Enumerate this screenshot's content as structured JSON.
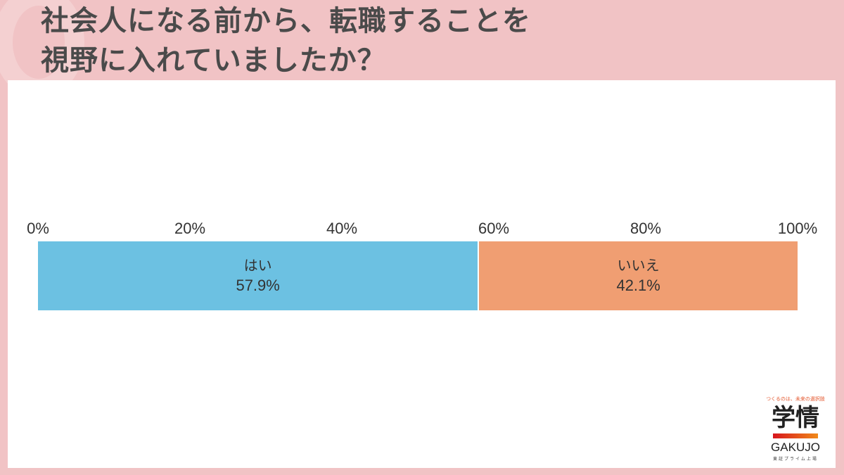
{
  "title": {
    "line1": "社会人になる前から、転職することを",
    "line2": "視野に入れていましたか？"
  },
  "chart_data": {
    "type": "bar",
    "orientation": "horizontal-stacked-100",
    "title": "社会人になる前から、転職することを視野に入れていましたか？",
    "xlabel": "",
    "ylabel": "",
    "xlim": [
      0,
      100
    ],
    "x_ticks": [
      "0%",
      "20%",
      "40%",
      "60%",
      "80%",
      "100%"
    ],
    "grid": false,
    "legend": "none (labels inside segments)",
    "series": [
      {
        "name": "はい",
        "value": 57.9,
        "label": "57.9%",
        "color": "#6cc1e2"
      },
      {
        "name": "いいえ",
        "value": 42.1,
        "label": "42.1%",
        "color": "#f09e72"
      }
    ]
  },
  "logo": {
    "tagline": "つくるのは、未来の選択肢",
    "kanji": "学情",
    "brand": "GAKUJO",
    "sub": "東証プライム上場"
  },
  "colors": {
    "background": "#f1c3c5",
    "panel": "#ffffff",
    "title_text": "#4a4a4a"
  }
}
